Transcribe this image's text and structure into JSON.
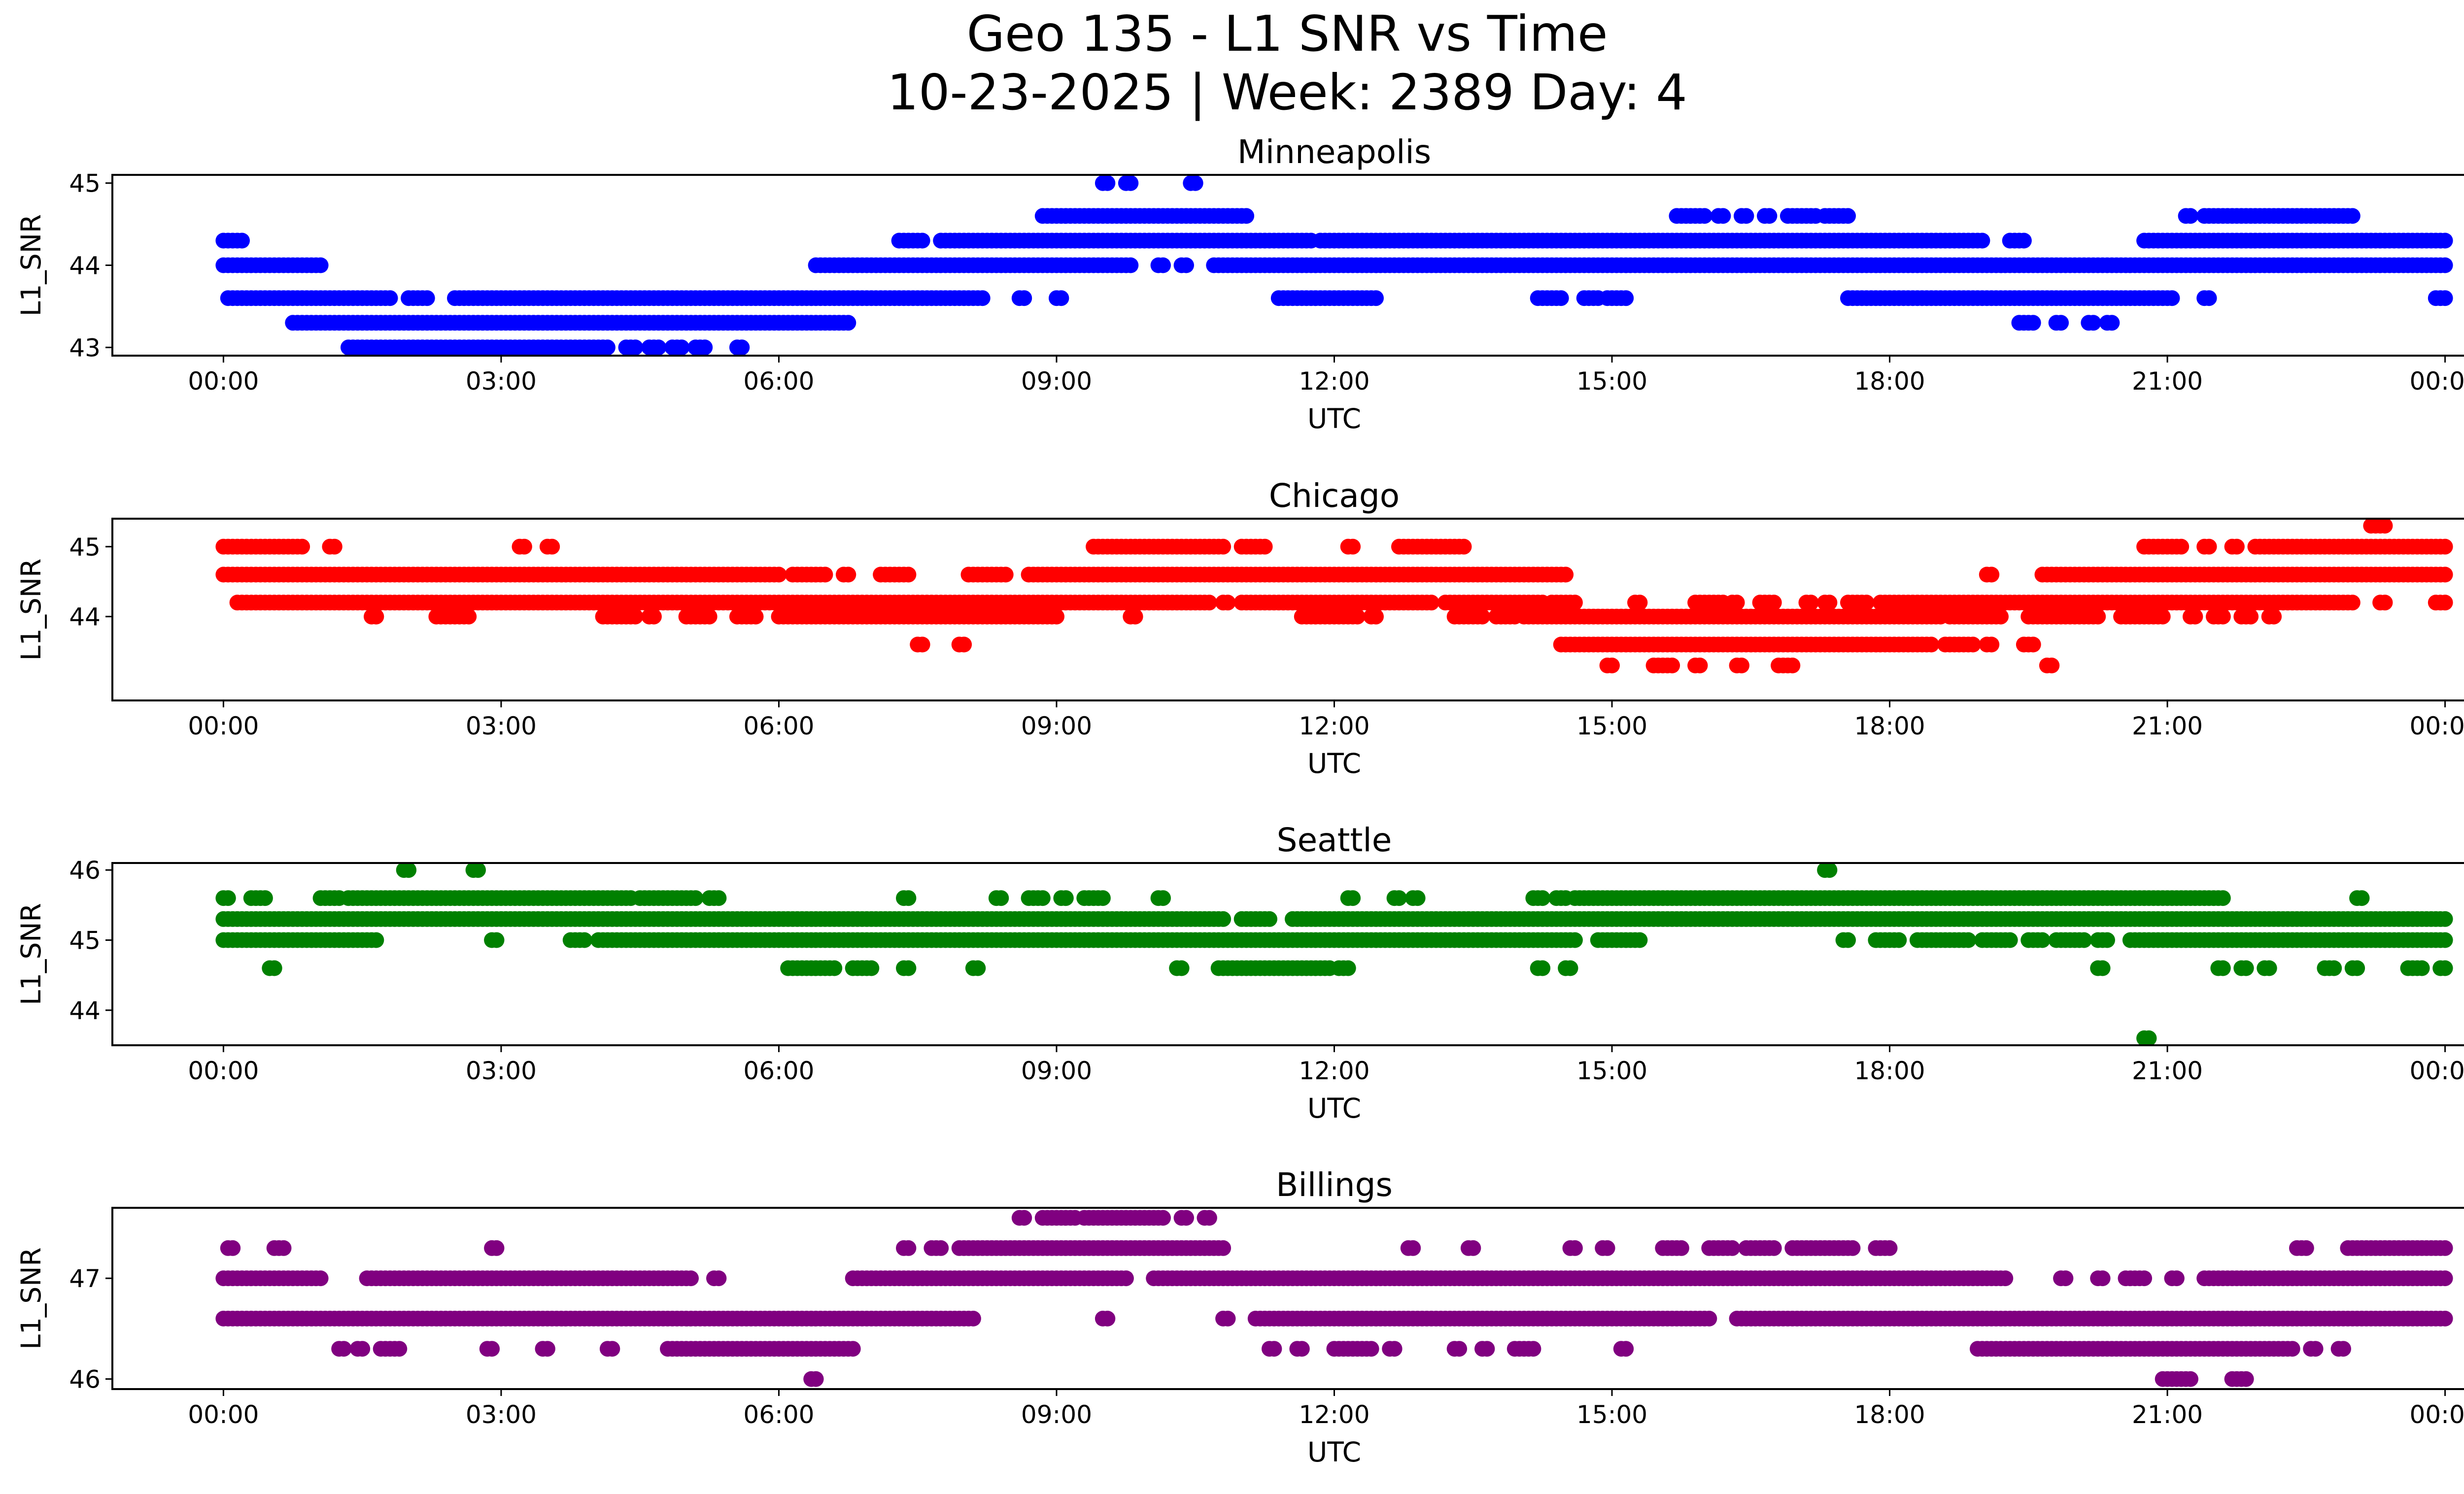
{
  "title_line1": "Geo 135 - L1 SNR vs Time",
  "title_line2": "10-23-2025 | Week: 2389 Day: 4",
  "chart_data": [
    {
      "type": "scatter",
      "title": "Minneapolis",
      "xlabel": "UTC",
      "ylabel": "L1_SNR",
      "color": "#0000ff",
      "xticks": [
        "00:00",
        "03:00",
        "06:00",
        "09:00",
        "12:00",
        "15:00",
        "18:00",
        "21:00",
        "00:00"
      ],
      "xlim_hours": [
        -1.2,
        25.2
      ],
      "yticks": [
        43,
        44,
        45
      ],
      "ylim": [
        42.9,
        45.1
      ],
      "series": [
        {
          "y": 45.0,
          "segments": [
            [
              9.5,
              9.55
            ],
            [
              9.75,
              9.8
            ],
            [
              10.45,
              10.5
            ]
          ]
        },
        {
          "y": 44.6,
          "segments": [
            [
              8.85,
              11.05
            ],
            [
              15.7,
              16.0
            ],
            [
              16.15,
              16.2
            ],
            [
              16.4,
              16.45
            ],
            [
              16.65,
              16.7
            ],
            [
              16.9,
              17.2
            ],
            [
              17.3,
              17.55
            ],
            [
              21.2,
              21.25
            ],
            [
              21.4,
              23.0
            ]
          ]
        },
        {
          "y": 44.3,
          "segments": [
            [
              0.0,
              0.2
            ],
            [
              7.3,
              7.55
            ],
            [
              7.75,
              7.9
            ],
            [
              7.95,
              11.75
            ],
            [
              11.85,
              19.0
            ],
            [
              19.3,
              19.45
            ],
            [
              20.75,
              24.0
            ]
          ]
        },
        {
          "y": 44.0,
          "segments": [
            [
              0.0,
              1.05
            ],
            [
              6.4,
              9.8
            ],
            [
              10.1,
              10.15
            ],
            [
              10.35,
              10.4
            ],
            [
              10.7,
              24.0
            ]
          ]
        },
        {
          "y": 43.6,
          "segments": [
            [
              0.05,
              1.8
            ],
            [
              2.0,
              2.2
            ],
            [
              2.5,
              8.2
            ],
            [
              8.6,
              8.65
            ],
            [
              9.0,
              9.05
            ],
            [
              11.4,
              12.45
            ],
            [
              14.2,
              14.45
            ],
            [
              14.7,
              14.85
            ],
            [
              14.95,
              15.15
            ],
            [
              17.55,
              21.05
            ],
            [
              21.4,
              21.45
            ],
            [
              23.9,
              24.0
            ]
          ]
        },
        {
          "y": 43.3,
          "segments": [
            [
              0.75,
              6.75
            ],
            [
              19.4,
              19.55
            ],
            [
              19.8,
              19.85
            ],
            [
              20.15,
              20.2
            ],
            [
              20.35,
              20.4
            ]
          ]
        },
        {
          "y": 43.0,
          "segments": [
            [
              1.35,
              4.15
            ],
            [
              4.35,
              4.45
            ],
            [
              4.6,
              4.7
            ],
            [
              4.85,
              4.95
            ],
            [
              5.1,
              5.2
            ],
            [
              5.55,
              5.6
            ]
          ]
        }
      ]
    },
    {
      "type": "scatter",
      "title": "Chicago",
      "xlabel": "UTC",
      "ylabel": "L1_SNR",
      "color": "#ff0000",
      "xticks": [
        "00:00",
        "03:00",
        "06:00",
        "09:00",
        "12:00",
        "15:00",
        "18:00",
        "21:00",
        "00:00"
      ],
      "xlim_hours": [
        -1.2,
        25.2
      ],
      "yticks": [
        44,
        45
      ],
      "ylim": [
        42.8,
        45.4
      ],
      "series": [
        {
          "y": 45.3,
          "segments": [
            [
              23.2,
              23.35
            ]
          ]
        },
        {
          "y": 45.0,
          "segments": [
            [
              0.0,
              0.85
            ],
            [
              1.15,
              1.2
            ],
            [
              3.2,
              3.25
            ],
            [
              3.5,
              3.55
            ],
            [
              9.4,
              10.8
            ],
            [
              11.0,
              11.25
            ],
            [
              12.15,
              12.2
            ],
            [
              12.7,
              13.4
            ],
            [
              20.75,
              21.15
            ],
            [
              21.4,
              21.45
            ],
            [
              21.7,
              21.75
            ],
            [
              21.95,
              24.0
            ]
          ]
        },
        {
          "y": 44.6,
          "segments": [
            [
              0.0,
              6.0
            ],
            [
              6.15,
              6.5
            ],
            [
              6.7,
              6.75
            ],
            [
              7.1,
              7.4
            ],
            [
              8.05,
              8.45
            ],
            [
              8.7,
              14.5
            ],
            [
              19.05,
              19.1
            ],
            [
              19.65,
              24.0
            ]
          ]
        },
        {
          "y": 44.2,
          "segments": [
            [
              0.15,
              10.65
            ],
            [
              10.8,
              10.85
            ],
            [
              11.0,
              13.05
            ],
            [
              13.2,
              14.25
            ],
            [
              14.35,
              14.6
            ],
            [
              15.25,
              15.3
            ],
            [
              15.9,
              16.2
            ],
            [
              16.3,
              16.35
            ],
            [
              16.6,
              16.75
            ],
            [
              17.1,
              17.15
            ],
            [
              17.3,
              17.35
            ],
            [
              17.55,
              17.75
            ],
            [
              17.9,
              23.0
            ],
            [
              23.3,
              23.35
            ],
            [
              23.9,
              24.0
            ]
          ]
        },
        {
          "y": 44.0,
          "segments": [
            [
              1.6,
              1.65
            ],
            [
              2.3,
              2.65
            ],
            [
              4.1,
              4.45
            ],
            [
              4.6,
              4.65
            ],
            [
              5.0,
              5.25
            ],
            [
              5.55,
              5.75
            ],
            [
              6.0,
              9.0
            ],
            [
              9.8,
              9.85
            ],
            [
              11.65,
              12.25
            ],
            [
              12.4,
              12.45
            ],
            [
              13.3,
              13.6
            ],
            [
              13.75,
              13.95
            ],
            [
              14.05,
              18.55
            ],
            [
              18.65,
              19.2
            ],
            [
              19.5,
              20.25
            ],
            [
              20.5,
              20.95
            ],
            [
              21.25,
              21.3
            ],
            [
              21.5,
              21.6
            ],
            [
              21.8,
              21.9
            ],
            [
              22.1,
              22.15
            ]
          ]
        },
        {
          "y": 43.6,
          "segments": [
            [
              7.5,
              7.55
            ],
            [
              7.95,
              8.0
            ],
            [
              14.45,
              18.45
            ],
            [
              18.6,
              18.9
            ],
            [
              19.05,
              19.1
            ],
            [
              19.45,
              19.55
            ]
          ]
        },
        {
          "y": 43.3,
          "segments": [
            [
              14.95,
              15.0
            ],
            [
              15.45,
              15.65
            ],
            [
              15.9,
              15.95
            ],
            [
              16.35,
              16.4
            ],
            [
              16.8,
              16.95
            ],
            [
              19.7,
              19.75
            ]
          ]
        }
      ]
    },
    {
      "type": "scatter",
      "title": "Seattle",
      "xlabel": "UTC",
      "ylabel": "L1_SNR",
      "color": "#008000",
      "xticks": [
        "00:00",
        "03:00",
        "06:00",
        "09:00",
        "12:00",
        "15:00",
        "18:00",
        "21:00",
        "00:00"
      ],
      "xlim_hours": [
        -1.2,
        25.2
      ],
      "yticks": [
        44,
        45,
        46
      ],
      "ylim": [
        43.5,
        46.1
      ],
      "series": [
        {
          "y": 46.0,
          "segments": [
            [
              1.95,
              2.0
            ],
            [
              2.7,
              2.75
            ],
            [
              17.3,
              17.35
            ]
          ]
        },
        {
          "y": 45.6,
          "segments": [
            [
              0.0,
              0.05
            ],
            [
              0.3,
              0.45
            ],
            [
              1.05,
              1.25
            ],
            [
              1.35,
              4.4
            ],
            [
              4.5,
              5.1
            ],
            [
              5.25,
              5.35
            ],
            [
              7.35,
              7.4
            ],
            [
              8.35,
              8.4
            ],
            [
              8.7,
              8.85
            ],
            [
              9.05,
              9.1
            ],
            [
              9.3,
              9.5
            ],
            [
              10.1,
              10.15
            ],
            [
              12.15,
              12.2
            ],
            [
              12.65,
              12.7
            ],
            [
              12.85,
              12.9
            ],
            [
              14.15,
              14.25
            ],
            [
              14.4,
              14.5
            ],
            [
              14.6,
              21.6
            ],
            [
              23.05,
              23.1
            ]
          ]
        },
        {
          "y": 45.3,
          "segments": [
            [
              0.0,
              10.8
            ],
            [
              11.0,
              11.3
            ],
            [
              11.55,
              24.0
            ]
          ]
        },
        {
          "y": 45.0,
          "segments": [
            [
              0.0,
              1.65
            ],
            [
              2.9,
              2.95
            ],
            [
              3.75,
              3.9
            ],
            [
              4.05,
              14.6
            ],
            [
              14.85,
              15.3
            ],
            [
              17.5,
              17.55
            ],
            [
              17.85,
              18.1
            ],
            [
              18.3,
              18.85
            ],
            [
              19.0,
              19.3
            ],
            [
              19.5,
              19.65
            ],
            [
              19.8,
              20.1
            ],
            [
              20.25,
              20.35
            ],
            [
              20.6,
              24.0
            ]
          ]
        },
        {
          "y": 44.6,
          "segments": [
            [
              0.5,
              0.55
            ],
            [
              6.1,
              6.6
            ],
            [
              6.8,
              7.0
            ],
            [
              7.35,
              7.4
            ],
            [
              8.1,
              8.15
            ],
            [
              10.3,
              10.35
            ],
            [
              10.75,
              11.95
            ],
            [
              12.05,
              12.15
            ],
            [
              14.2,
              14.25
            ],
            [
              14.5,
              14.55
            ],
            [
              20.25,
              20.3
            ],
            [
              21.55,
              21.6
            ],
            [
              21.8,
              21.85
            ],
            [
              22.05,
              22.1
            ],
            [
              22.7,
              22.8
            ],
            [
              23.0,
              23.05
            ],
            [
              23.6,
              23.75
            ],
            [
              23.95,
              24.0
            ]
          ]
        },
        {
          "y": 43.6,
          "segments": [
            [
              20.75,
              20.8
            ]
          ]
        }
      ]
    },
    {
      "type": "scatter",
      "title": "Billings",
      "xlabel": "UTC",
      "ylabel": "L1_SNR",
      "color": "#800080",
      "xticks": [
        "00:00",
        "03:00",
        "06:00",
        "09:00",
        "12:00",
        "15:00",
        "18:00",
        "21:00",
        "00:00"
      ],
      "xlim_hours": [
        -1.2,
        25.2
      ],
      "yticks": [
        46,
        47
      ],
      "ylim": [
        45.9,
        47.7
      ],
      "series": [
        {
          "y": 47.6,
          "segments": [
            [
              8.6,
              8.65
            ],
            [
              8.85,
              9.2
            ],
            [
              9.3,
              10.15
            ],
            [
              10.35,
              10.4
            ],
            [
              10.6,
              10.65
            ]
          ]
        },
        {
          "y": 47.3,
          "segments": [
            [
              0.05,
              0.1
            ],
            [
              0.55,
              0.65
            ],
            [
              2.9,
              2.95
            ],
            [
              7.35,
              7.4
            ],
            [
              7.65,
              7.75
            ],
            [
              7.95,
              10.8
            ],
            [
              12.8,
              12.85
            ],
            [
              13.45,
              13.5
            ],
            [
              14.55,
              14.6
            ],
            [
              14.9,
              14.95
            ],
            [
              15.55,
              15.75
            ],
            [
              16.05,
              16.3
            ],
            [
              16.45,
              16.75
            ],
            [
              16.95,
              17.6
            ],
            [
              17.85,
              18.0
            ],
            [
              22.4,
              22.5
            ],
            [
              22.95,
              24.0
            ]
          ]
        },
        {
          "y": 47.0,
          "segments": [
            [
              0.0,
              1.05
            ],
            [
              1.55,
              5.05
            ],
            [
              5.3,
              5.35
            ],
            [
              6.8,
              9.75
            ],
            [
              10.05,
              19.25
            ],
            [
              19.85,
              19.9
            ],
            [
              20.25,
              20.3
            ],
            [
              20.55,
              20.75
            ],
            [
              21.05,
              21.1
            ],
            [
              21.4,
              24.0
            ]
          ]
        },
        {
          "y": 46.6,
          "segments": [
            [
              0.0,
              8.1
            ],
            [
              9.5,
              9.55
            ],
            [
              10.8,
              10.85
            ],
            [
              11.15,
              16.05
            ],
            [
              16.35,
              24.0
            ]
          ]
        },
        {
          "y": 46.3,
          "segments": [
            [
              1.25,
              1.3
            ],
            [
              1.45,
              1.5
            ],
            [
              1.7,
              1.9
            ],
            [
              2.85,
              2.9
            ],
            [
              3.45,
              3.5
            ],
            [
              4.15,
              4.2
            ],
            [
              4.8,
              6.8
            ],
            [
              11.3,
              11.35
            ],
            [
              11.6,
              11.65
            ],
            [
              12.0,
              12.4
            ],
            [
              12.6,
              12.65
            ],
            [
              13.3,
              13.35
            ],
            [
              13.6,
              13.65
            ],
            [
              13.95,
              14.05
            ],
            [
              14.1,
              14.15
            ],
            [
              15.1,
              15.15
            ],
            [
              18.95,
              22.35
            ],
            [
              22.55,
              22.6
            ],
            [
              22.85,
              22.9
            ]
          ]
        },
        {
          "y": 46.0,
          "segments": [
            [
              6.35,
              6.4
            ],
            [
              20.95,
              21.25
            ],
            [
              21.7,
              21.85
            ]
          ]
        }
      ]
    }
  ]
}
